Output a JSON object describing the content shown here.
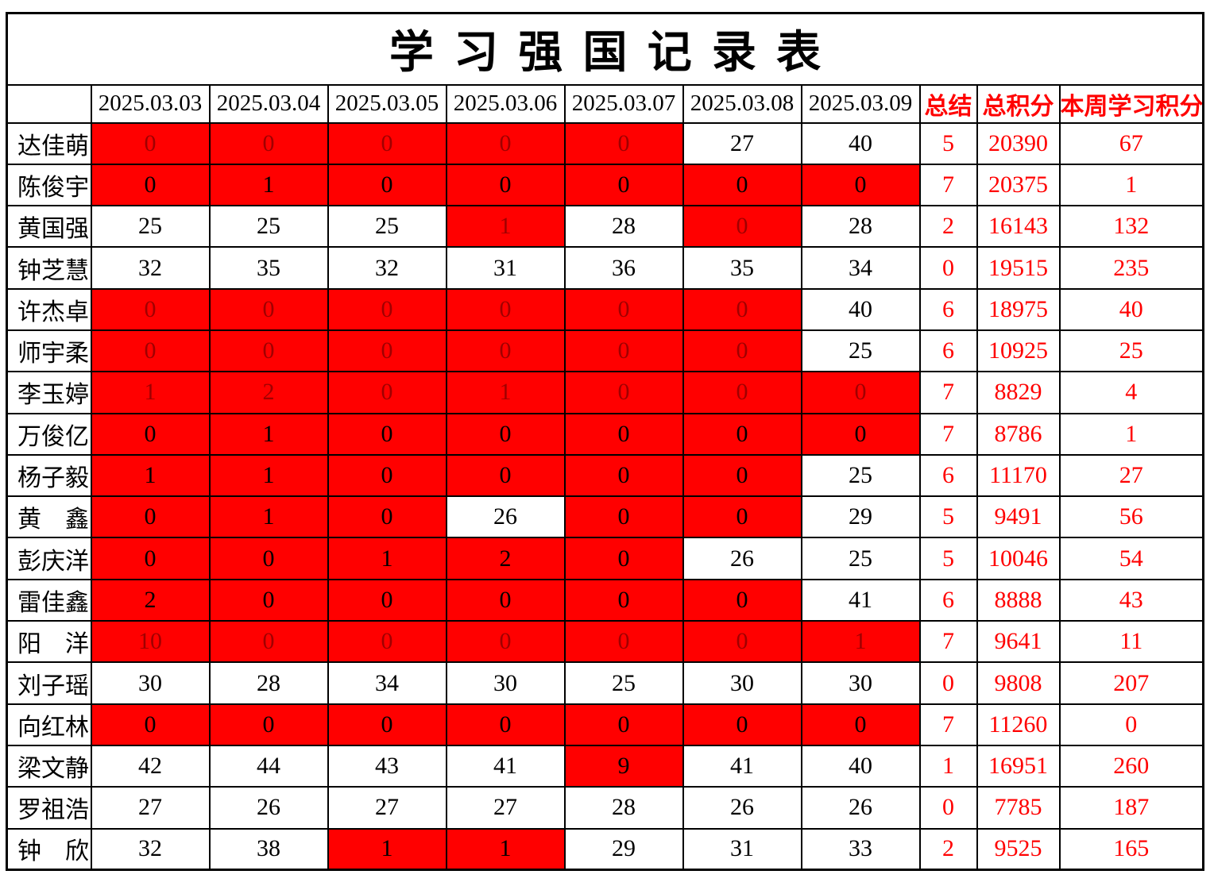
{
  "title": "学习强国记录表",
  "colors": {
    "highlight_red": "#ff0000",
    "dark_red_text": "#a00000",
    "accent_text_red": "#ff0000",
    "border": "#000000"
  },
  "header": {
    "name_column": "",
    "dates": [
      "2025.03.03",
      "2025.03.04",
      "2025.03.05",
      "2025.03.06",
      "2025.03.07",
      "2025.03.08",
      "2025.03.09"
    ],
    "summary": "总结",
    "total_points": "总积分",
    "week_points": "本周学习积分"
  },
  "rows": [
    {
      "name": "达佳萌",
      "days": [
        {
          "v": "0",
          "red": true,
          "dim": true
        },
        {
          "v": "0",
          "red": true,
          "dim": true
        },
        {
          "v": "0",
          "red": true,
          "dim": true
        },
        {
          "v": "0",
          "red": true,
          "dim": true
        },
        {
          "v": "0",
          "red": true,
          "dim": true
        },
        {
          "v": "27"
        },
        {
          "v": "40"
        }
      ],
      "summary": "5",
      "total": "20390",
      "week": "67"
    },
    {
      "name": "陈俊宇",
      "days": [
        {
          "v": "0",
          "red": true
        },
        {
          "v": "1",
          "red": true
        },
        {
          "v": "0",
          "red": true
        },
        {
          "v": "0",
          "red": true
        },
        {
          "v": "0",
          "red": true
        },
        {
          "v": "0",
          "red": true
        },
        {
          "v": "0",
          "red": true
        }
      ],
      "summary": "7",
      "total": "20375",
      "week": "1"
    },
    {
      "name": "黄国强",
      "days": [
        {
          "v": "25"
        },
        {
          "v": "25"
        },
        {
          "v": "25"
        },
        {
          "v": "1",
          "red": true,
          "dim": true
        },
        {
          "v": "28"
        },
        {
          "v": "0",
          "red": true,
          "dim": true
        },
        {
          "v": "28"
        }
      ],
      "summary": "2",
      "total": "16143",
      "week": "132"
    },
    {
      "name": "钟芝慧",
      "days": [
        {
          "v": "32"
        },
        {
          "v": "35"
        },
        {
          "v": "32"
        },
        {
          "v": "31"
        },
        {
          "v": "36"
        },
        {
          "v": "35"
        },
        {
          "v": "34"
        }
      ],
      "summary": "0",
      "total": "19515",
      "week": "235"
    },
    {
      "name": "许杰卓",
      "days": [
        {
          "v": "0",
          "red": true,
          "dim": true
        },
        {
          "v": "0",
          "red": true,
          "dim": true
        },
        {
          "v": "0",
          "red": true,
          "dim": true
        },
        {
          "v": "0",
          "red": true,
          "dim": true
        },
        {
          "v": "0",
          "red": true,
          "dim": true
        },
        {
          "v": "0",
          "red": true,
          "dim": true
        },
        {
          "v": "40"
        }
      ],
      "summary": "6",
      "total": "18975",
      "week": "40"
    },
    {
      "name": "师宇柔",
      "days": [
        {
          "v": "0",
          "red": true,
          "dim": true
        },
        {
          "v": "0",
          "red": true,
          "dim": true
        },
        {
          "v": "0",
          "red": true,
          "dim": true
        },
        {
          "v": "0",
          "red": true,
          "dim": true
        },
        {
          "v": "0",
          "red": true,
          "dim": true
        },
        {
          "v": "0",
          "red": true,
          "dim": true
        },
        {
          "v": "25"
        }
      ],
      "summary": "6",
      "total": "10925",
      "week": "25"
    },
    {
      "name": "李玉婷",
      "days": [
        {
          "v": "1",
          "red": true,
          "dim": true
        },
        {
          "v": "2",
          "red": true,
          "dim": true
        },
        {
          "v": "0",
          "red": true,
          "dim": true
        },
        {
          "v": "1",
          "red": true,
          "dim": true
        },
        {
          "v": "0",
          "red": true,
          "dim": true
        },
        {
          "v": "0",
          "red": true,
          "dim": true
        },
        {
          "v": "0",
          "red": true,
          "dim": true
        }
      ],
      "summary": "7",
      "total": "8829",
      "week": "4"
    },
    {
      "name": "万俊亿",
      "days": [
        {
          "v": "0",
          "red": true
        },
        {
          "v": "1",
          "red": true
        },
        {
          "v": "0",
          "red": true
        },
        {
          "v": "0",
          "red": true
        },
        {
          "v": "0",
          "red": true
        },
        {
          "v": "0",
          "red": true
        },
        {
          "v": "0",
          "red": true
        }
      ],
      "summary": "7",
      "total": "8786",
      "week": "1"
    },
    {
      "name": "杨子毅",
      "days": [
        {
          "v": "1",
          "red": true
        },
        {
          "v": "1",
          "red": true
        },
        {
          "v": "0",
          "red": true
        },
        {
          "v": "0",
          "red": true
        },
        {
          "v": "0",
          "red": true
        },
        {
          "v": "0",
          "red": true
        },
        {
          "v": "25"
        }
      ],
      "summary": "6",
      "total": "11170",
      "week": "27"
    },
    {
      "name": "黄　鑫",
      "days": [
        {
          "v": "0",
          "red": true
        },
        {
          "v": "1",
          "red": true
        },
        {
          "v": "0",
          "red": true
        },
        {
          "v": "26"
        },
        {
          "v": "0",
          "red": true
        },
        {
          "v": "0",
          "red": true
        },
        {
          "v": "29"
        }
      ],
      "summary": "5",
      "total": "9491",
      "week": "56"
    },
    {
      "name": "彭庆洋",
      "days": [
        {
          "v": "0",
          "red": true
        },
        {
          "v": "0",
          "red": true
        },
        {
          "v": "1",
          "red": true
        },
        {
          "v": "2",
          "red": true
        },
        {
          "v": "0",
          "red": true
        },
        {
          "v": "26"
        },
        {
          "v": "25"
        }
      ],
      "summary": "5",
      "total": "10046",
      "week": "54"
    },
    {
      "name": "雷佳鑫",
      "days": [
        {
          "v": "2",
          "red": true
        },
        {
          "v": "0",
          "red": true
        },
        {
          "v": "0",
          "red": true
        },
        {
          "v": "0",
          "red": true
        },
        {
          "v": "0",
          "red": true
        },
        {
          "v": "0",
          "red": true
        },
        {
          "v": "41"
        }
      ],
      "summary": "6",
      "total": "8888",
      "week": "43"
    },
    {
      "name": "阳　洋",
      "days": [
        {
          "v": "10",
          "red": true,
          "dim": true
        },
        {
          "v": "0",
          "red": true,
          "dim": true
        },
        {
          "v": "0",
          "red": true,
          "dim": true
        },
        {
          "v": "0",
          "red": true,
          "dim": true
        },
        {
          "v": "0",
          "red": true,
          "dim": true
        },
        {
          "v": "0",
          "red": true,
          "dim": true
        },
        {
          "v": "1",
          "red": true,
          "dim": true
        }
      ],
      "summary": "7",
      "total": "9641",
      "week": "11"
    },
    {
      "name": "刘子瑶",
      "days": [
        {
          "v": "30"
        },
        {
          "v": "28"
        },
        {
          "v": "34"
        },
        {
          "v": "30"
        },
        {
          "v": "25"
        },
        {
          "v": "30"
        },
        {
          "v": "30"
        }
      ],
      "summary": "0",
      "total": "9808",
      "week": "207"
    },
    {
      "name": "向红林",
      "days": [
        {
          "v": "0",
          "red": true
        },
        {
          "v": "0",
          "red": true
        },
        {
          "v": "0",
          "red": true
        },
        {
          "v": "0",
          "red": true
        },
        {
          "v": "0",
          "red": true
        },
        {
          "v": "0",
          "red": true
        },
        {
          "v": "0",
          "red": true
        }
      ],
      "summary": "7",
      "total": "11260",
      "week": "0"
    },
    {
      "name": "梁文静",
      "days": [
        {
          "v": "42"
        },
        {
          "v": "44"
        },
        {
          "v": "43"
        },
        {
          "v": "41"
        },
        {
          "v": "9",
          "red": true
        },
        {
          "v": "41"
        },
        {
          "v": "40"
        }
      ],
      "summary": "1",
      "total": "16951",
      "week": "260"
    },
    {
      "name": "罗祖浩",
      "days": [
        {
          "v": "27"
        },
        {
          "v": "26"
        },
        {
          "v": "27"
        },
        {
          "v": "27"
        },
        {
          "v": "28"
        },
        {
          "v": "26"
        },
        {
          "v": "26"
        }
      ],
      "summary": "0",
      "total": "7785",
      "week": "187"
    },
    {
      "name": "钟　欣",
      "days": [
        {
          "v": "32"
        },
        {
          "v": "38"
        },
        {
          "v": "1",
          "red": true
        },
        {
          "v": "1",
          "red": true
        },
        {
          "v": "29"
        },
        {
          "v": "31"
        },
        {
          "v": "33"
        }
      ],
      "summary": "2",
      "total": "9525",
      "week": "165"
    }
  ]
}
